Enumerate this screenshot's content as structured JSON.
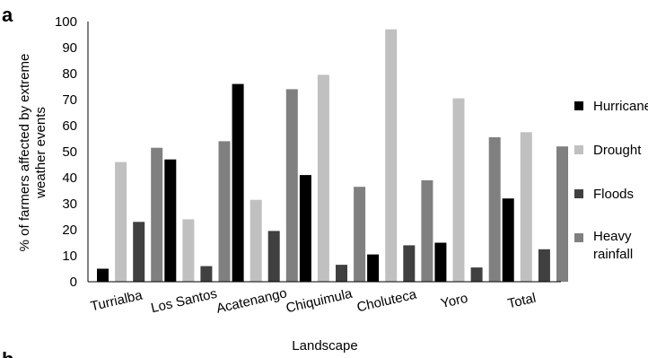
{
  "panel_label": "a",
  "next_panel_label": "b",
  "chart_data": {
    "type": "bar",
    "categories": [
      "Turrialba",
      "Los Santos",
      "Acatenango",
      "Chiquimula",
      "Choluteca",
      "Yoro",
      "Total"
    ],
    "series": [
      {
        "name": "Hurricane",
        "color": "#000000",
        "values": [
          5,
          47,
          76,
          41,
          10.5,
          15,
          32
        ]
      },
      {
        "name": "Drought",
        "color": "#c0c0c0",
        "values": [
          46,
          24,
          31.5,
          79.5,
          97,
          70.5,
          57.5
        ]
      },
      {
        "name": "Floods",
        "color": "#404040",
        "values": [
          23,
          6,
          19.5,
          6.5,
          14,
          5.5,
          12.5
        ]
      },
      {
        "name": "Heavy rainfall",
        "legend_lines": [
          "Heavy",
          "rainfall"
        ],
        "color": "#808080",
        "values": [
          51.5,
          54,
          74,
          36.5,
          39,
          55.5,
          52
        ]
      }
    ],
    "xlabel": "Landscape",
    "ylabel_lines": [
      "% of farmers affected by extreme",
      "weather events"
    ],
    "ylim": [
      0,
      100
    ],
    "yticks": [
      0,
      10,
      20,
      30,
      40,
      50,
      60,
      70,
      80,
      90,
      100
    ],
    "grid": false,
    "legend_position": "right"
  }
}
